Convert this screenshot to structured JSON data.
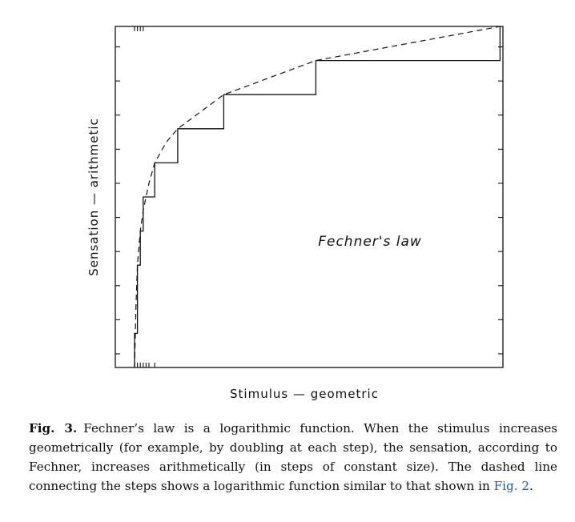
{
  "chart_data": {
    "type": "line",
    "xlabel": "Stimulus — geometric",
    "ylabel": "Sensation — arithmetic",
    "xlim": [
      0,
      129
    ],
    "ylim": [
      0,
      10
    ],
    "grid": false,
    "x_ticks_top": [
      1,
      2,
      3,
      4
    ],
    "x_ticks_bottom": [
      1,
      2,
      3,
      4,
      5,
      6,
      8
    ],
    "y_tick_count": 10,
    "annotation": "Fechner's law",
    "series": [
      {
        "style": "solid",
        "points": [
          [
            1,
            0
          ],
          [
            1,
            1
          ],
          [
            2,
            1
          ],
          [
            2,
            2
          ],
          [
            2,
            3
          ],
          [
            3,
            3
          ],
          [
            3,
            4
          ],
          [
            4,
            4
          ],
          [
            4,
            5
          ],
          [
            8,
            5
          ],
          [
            8,
            6
          ],
          [
            16,
            6
          ],
          [
            16,
            7
          ],
          [
            32,
            7
          ],
          [
            32,
            8
          ],
          [
            64,
            8
          ],
          [
            64,
            9
          ],
          [
            128,
            9
          ],
          [
            128,
            10
          ]
        ]
      },
      {
        "style": "dashed",
        "points": [
          [
            1,
            0
          ],
          [
            1.5,
            1.8
          ],
          [
            2,
            3
          ],
          [
            3,
            4
          ],
          [
            4,
            4.6
          ],
          [
            6,
            5.4
          ],
          [
            8,
            6
          ],
          [
            12,
            6.6
          ],
          [
            16,
            7
          ],
          [
            24,
            7.5
          ],
          [
            32,
            8
          ],
          [
            48,
            8.5
          ],
          [
            64,
            9
          ],
          [
            96,
            9.5
          ],
          [
            128,
            10
          ]
        ]
      }
    ]
  },
  "caption": {
    "label": "Fig. 3.",
    "text": "Fechner’s law is a logarithmic function. When the stimulus increases geometrically (for example, by doubling at each step), the sensation, according to Fechner, increases arithmetically (in steps of constant size). The dashed line connecting the steps shows a logarithmic function similar to that shown in",
    "link_text": "Fig. 2",
    "end": "."
  }
}
